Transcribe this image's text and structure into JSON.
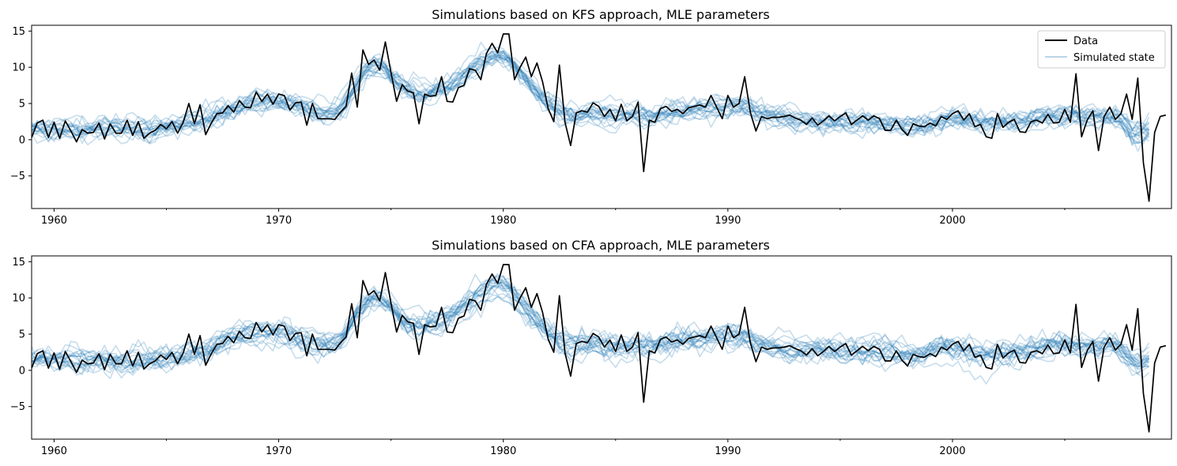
{
  "chart_data": [
    {
      "type": "line",
      "title": "Simulations based on KFS approach, MLE parameters",
      "xlabel": "",
      "ylabel": "",
      "xlim": [
        1959.0,
        2009.75
      ],
      "ylim": [
        -9.5,
        15.8
      ],
      "xticks": [
        1960,
        1970,
        1980,
        1990,
        2000
      ],
      "xtick_labels": [
        "1960",
        "1970",
        "1980",
        "1990",
        "2000"
      ],
      "yticks": [
        -5,
        0,
        5,
        10,
        15
      ],
      "ytick_labels": [
        "−5",
        "0",
        "5",
        "10",
        "15"
      ],
      "legend": {
        "placement": "top-right",
        "entries": [
          "Data",
          "Simulated state"
        ]
      },
      "series": [
        {
          "name": "Data",
          "color": "#000000",
          "x_start": 1959.0,
          "x_step": 0.25,
          "values": [
            0.3,
            2.3,
            2.7,
            0.3,
            2.4,
            0.2,
            2.6,
            1.2,
            -0.3,
            1.4,
            0.9,
            1.0,
            2.3,
            0.1,
            2.2,
            0.9,
            0.9,
            2.7,
            0.6,
            2.5,
            0.2,
            0.9,
            1.3,
            2.1,
            1.5,
            2.5,
            0.9,
            2.4,
            5.0,
            2.2,
            4.8,
            0.7,
            2.3,
            3.6,
            3.7,
            4.7,
            3.8,
            5.4,
            4.5,
            4.4,
            6.6,
            5.3,
            6.3,
            4.9,
            6.3,
            6.1,
            4.1,
            5.1,
            5.2,
            2.0,
            5.0,
            2.9,
            2.9,
            2.9,
            2.8,
            3.8,
            4.6,
            9.2,
            4.5,
            12.4,
            10.4,
            11.0,
            9.6,
            13.5,
            9.3,
            5.3,
            7.6,
            6.7,
            6.5,
            2.2,
            6.3,
            6.0,
            6.1,
            8.7,
            5.3,
            5.2,
            7.2,
            7.5,
            9.8,
            9.6,
            8.3,
            11.9,
            13.3,
            12.0,
            14.6,
            14.6,
            8.3,
            10.0,
            11.4,
            8.7,
            10.6,
            8.0,
            4.3,
            2.5,
            10.3,
            2.4,
            -0.8,
            3.7,
            4.0,
            3.8,
            5.1,
            4.6,
            3.2,
            4.2,
            2.6,
            4.9,
            2.6,
            3.2,
            5.2,
            -4.4,
            2.7,
            2.4,
            4.3,
            4.6,
            3.9,
            4.2,
            3.6,
            4.4,
            4.6,
            4.8,
            4.5,
            6.1,
            4.5,
            2.9,
            6.1,
            4.5,
            5.0,
            8.7,
            3.8,
            1.2,
            3.2,
            2.9,
            3.1,
            3.1,
            3.2,
            3.4,
            3.0,
            2.7,
            2.1,
            3.0,
            2.0,
            2.6,
            3.3,
            2.6,
            3.2,
            3.7,
            2.1,
            2.7,
            3.3,
            2.7,
            3.3,
            2.9,
            1.3,
            1.3,
            2.7,
            1.4,
            0.6,
            2.2,
            1.9,
            1.8,
            2.3,
            1.9,
            3.2,
            2.8,
            3.6,
            4.0,
            2.7,
            3.6,
            1.8,
            2.1,
            0.4,
            0.2,
            3.6,
            1.7,
            2.4,
            2.8,
            1.1,
            1.0,
            2.5,
            2.7,
            2.3,
            3.5,
            2.3,
            2.4,
            4.2,
            2.4,
            9.1,
            0.4,
            2.7,
            4.0,
            -1.5,
            3.2,
            4.5,
            2.8,
            3.6,
            6.3,
            2.8,
            8.5,
            -3.2,
            -8.5,
            1.0,
            3.2,
            3.4
          ]
        },
        {
          "name": "Simulated state",
          "color": "#1f77b4",
          "opacity": 0.25,
          "count": 20,
          "x_start": 1959.0,
          "x_step": 0.25,
          "center": [
            1.4,
            1.5,
            1.6,
            1.6,
            1.6,
            1.5,
            1.5,
            1.4,
            1.3,
            1.3,
            1.3,
            1.3,
            1.4,
            1.4,
            1.4,
            1.4,
            1.4,
            1.5,
            1.5,
            1.4,
            1.3,
            1.3,
            1.4,
            1.5,
            1.7,
            1.9,
            2.0,
            2.2,
            2.4,
            2.6,
            2.7,
            2.9,
            3.1,
            3.4,
            3.7,
            4.0,
            4.3,
            4.6,
            4.8,
            5.0,
            5.2,
            5.3,
            5.4,
            5.4,
            5.3,
            5.2,
            5.0,
            4.8,
            4.6,
            4.3,
            4.0,
            3.8,
            3.7,
            3.7,
            3.9,
            4.4,
            5.4,
            6.7,
            7.9,
            9.0,
            9.7,
            10.0,
            9.9,
            9.5,
            8.8,
            8.0,
            7.2,
            6.7,
            6.4,
            6.3,
            6.3,
            6.4,
            6.6,
            6.9,
            7.3,
            7.7,
            8.2,
            8.7,
            9.3,
            9.9,
            10.5,
            11.0,
            11.4,
            11.6,
            11.5,
            11.0,
            10.2,
            9.3,
            8.4,
            7.5,
            6.7,
            5.9,
            5.1,
            4.5,
            4.0,
            3.7,
            3.5,
            3.5,
            3.6,
            3.7,
            3.7,
            3.6,
            3.5,
            3.4,
            3.3,
            3.3,
            3.3,
            3.3,
            3.3,
            3.2,
            3.3,
            3.4,
            3.6,
            3.7,
            3.8,
            3.9,
            4.0,
            4.1,
            4.2,
            4.3,
            4.4,
            4.5,
            4.6,
            4.6,
            4.6,
            4.6,
            4.6,
            4.5,
            4.3,
            4.0,
            3.7,
            3.5,
            3.3,
            3.2,
            3.1,
            3.0,
            2.9,
            2.8,
            2.7,
            2.6,
            2.6,
            2.6,
            2.6,
            2.6,
            2.6,
            2.6,
            2.6,
            2.6,
            2.6,
            2.6,
            2.6,
            2.5,
            2.4,
            2.3,
            2.2,
            2.1,
            2.0,
            2.0,
            2.1,
            2.2,
            2.4,
            2.6,
            2.8,
            2.9,
            3.0,
            3.0,
            2.9,
            2.7,
            2.5,
            2.3,
            2.2,
            2.2,
            2.2,
            2.3,
            2.4,
            2.5,
            2.6,
            2.7,
            2.8,
            2.9,
            3.0,
            3.1,
            3.2,
            3.2,
            3.1,
            3.0,
            3.0,
            3.0,
            3.0,
            3.1,
            3.2,
            3.3,
            3.3,
            3.2,
            2.7,
            1.8,
            1.0,
            0.8,
            1.1,
            1.5
          ],
          "spread": 1.1
        }
      ]
    },
    {
      "type": "line",
      "title": "Simulations based on CFA approach, MLE parameters",
      "xlabel": "",
      "ylabel": "",
      "xlim": [
        1959.0,
        2009.75
      ],
      "ylim": [
        -9.5,
        15.8
      ],
      "xticks": [
        1960,
        1970,
        1980,
        1990,
        2000
      ],
      "xtick_labels": [
        "1960",
        "1970",
        "1980",
        "1990",
        "2000"
      ],
      "yticks": [
        -5,
        0,
        5,
        10,
        15
      ],
      "ytick_labels": [
        "−5",
        "0",
        "5",
        "10",
        "15"
      ],
      "series": [
        {
          "name": "Data",
          "color": "#000000",
          "x_start": 1959.0,
          "x_step": 0.25,
          "same_as": "Data"
        },
        {
          "name": "Simulated state",
          "color": "#1f77b4",
          "opacity": 0.25,
          "count": 20,
          "x_start": 1959.0,
          "x_step": 0.25,
          "same_as": "Simulated state",
          "spread": 1.25
        }
      ]
    }
  ]
}
